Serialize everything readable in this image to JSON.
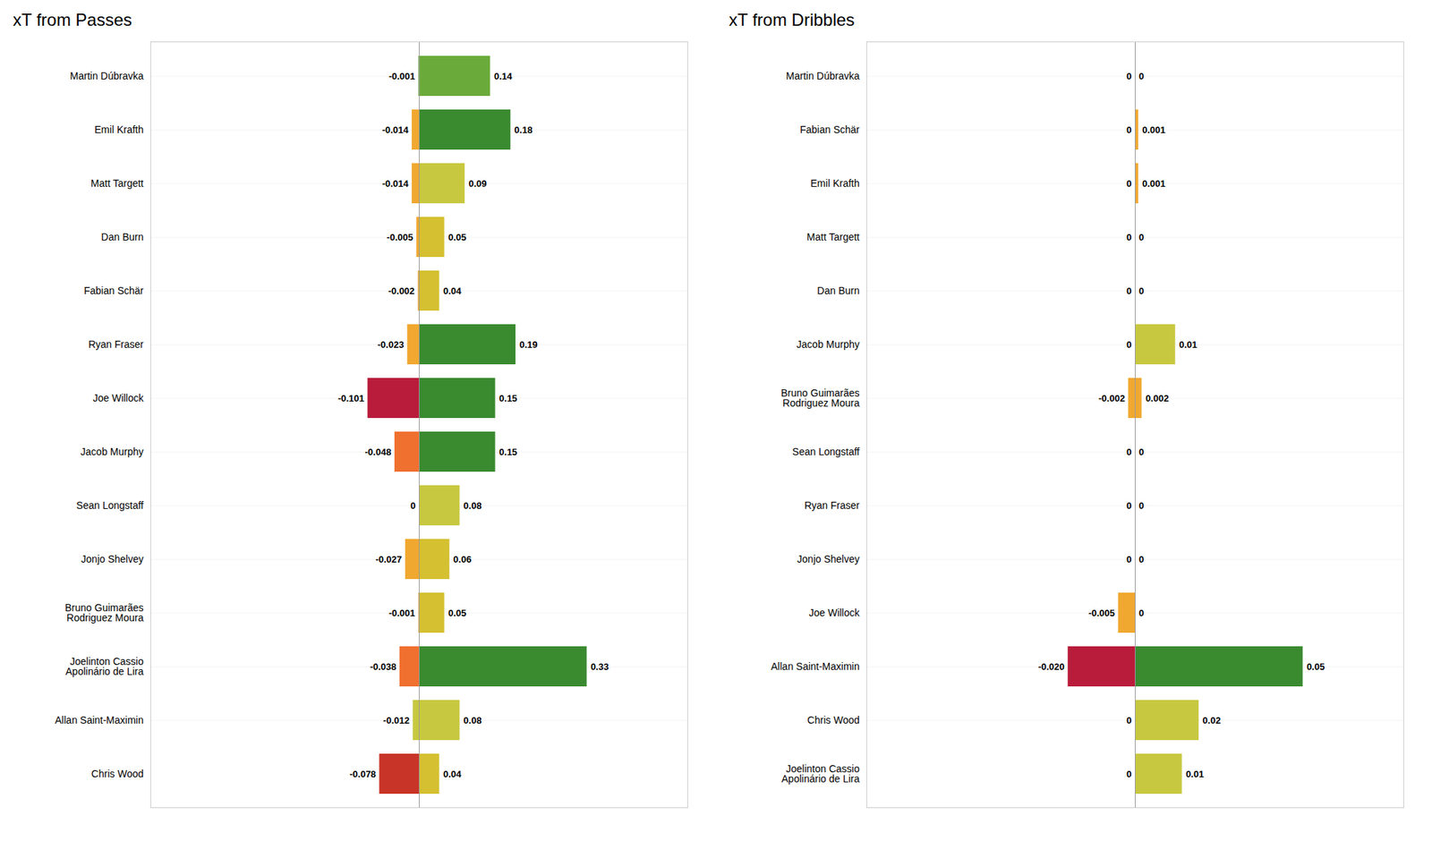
{
  "chart_data": [
    {
      "type": "bar",
      "title": "xT from Passes",
      "orientation": "horizontal",
      "stacked": true,
      "data_labels": true,
      "tick_labels": "y",
      "grid": false,
      "categories": [
        "Martin Dúbravka",
        "Emil Krafth",
        "Matt Targett",
        "Dan Burn",
        "Fabian Schär",
        "Ryan Fraser",
        "Joe Willock",
        "Jacob Murphy",
        "Sean Longstaff",
        "Jonjo Shelvey",
        "Bruno Guimarães\nRodriguez Moura",
        "Joelinton Cassio\nApolinário de Lira",
        "Allan Saint-Maximin",
        "Chris Wood"
      ],
      "xlim": [
        -0.528,
        0.528
      ],
      "series": [
        {
          "values": [
            -0.001,
            -0.014,
            -0.014,
            -0.005,
            -0.002,
            -0.023,
            -0.101,
            -0.048,
            0,
            -0.027,
            -0.001,
            -0.038,
            -0.012,
            -0.078
          ],
          "value_labels": [
            "-0.001",
            "-0.014",
            "-0.014",
            "-0.005",
            "-0.002",
            "-0.023",
            "-0.101",
            "-0.048",
            "0",
            "-0.027",
            "-0.001",
            "-0.038",
            "-0.012",
            "-0.078"
          ],
          "colors": [
            "#6aaa3a",
            "#f0a830",
            "#f0a830",
            "#f0a830",
            "#f0a830",
            "#f0a830",
            "#b91c3a",
            "#f07030",
            "#f0a830",
            "#f0a830",
            "#f0a830",
            "#f07030",
            "#c8c840",
            "#c83428"
          ]
        },
        {
          "values": [
            0.14,
            0.18,
            0.09,
            0.05,
            0.04,
            0.19,
            0.15,
            0.15,
            0.08,
            0.06,
            0.05,
            0.33,
            0.08,
            0.04
          ],
          "value_labels": [
            "0.14",
            "0.18",
            "0.09",
            "0.05",
            "0.04",
            "0.19",
            "0.15",
            "0.15",
            "0.08",
            "0.06",
            "0.05",
            "0.33",
            "0.08",
            "0.04"
          ],
          "colors": [
            "#6aaa3a",
            "#3a8a30",
            "#c8c840",
            "#d4c030",
            "#d4c030",
            "#3a8a30",
            "#3a8a30",
            "#3a8a30",
            "#c8c840",
            "#d4c030",
            "#d4c030",
            "#3a8a30",
            "#c8c840",
            "#d4c030"
          ]
        }
      ]
    },
    {
      "type": "bar",
      "title": "xT from Dribbles",
      "orientation": "horizontal",
      "stacked": true,
      "data_labels": true,
      "tick_labels": "y",
      "grid": false,
      "categories": [
        "Martin Dúbravka",
        "Fabian Schär",
        "Emil Krafth",
        "Matt Targett",
        "Dan Burn",
        "Jacob Murphy",
        "Bruno Guimarães\nRodriguez Moura",
        "Sean Longstaff",
        "Ryan Fraser",
        "Jonjo Shelvey",
        "Joe Willock",
        "Allan Saint-Maximin",
        "Chris Wood",
        "Joelinton Cassio\nApolinário de Lira"
      ],
      "xlim": [
        -0.08,
        0.08
      ],
      "series": [
        {
          "values": [
            0,
            0,
            0,
            0,
            0,
            0,
            -0.002,
            0,
            0,
            0,
            -0.005,
            -0.02,
            0,
            0
          ],
          "value_labels": [
            "0",
            "0",
            "0",
            "0",
            "0",
            "0",
            "-0.002",
            "0",
            "0",
            "0",
            "-0.005",
            "-0.020",
            "0",
            "0"
          ],
          "colors": [
            "#6aaa3a",
            "#f0a830",
            "#f0a830",
            "#f0a830",
            "#f0a830",
            "#3a8a30",
            "#f0a830",
            "#f0a830",
            "#f0a830",
            "#f0a830",
            "#f0a830",
            "#b91c3a",
            "#3a8a30",
            "#3a8a30"
          ]
        },
        {
          "values": [
            0,
            0.001,
            0.001,
            0,
            0,
            0.012,
            0.002,
            0,
            0,
            0,
            0,
            0.05,
            0.019,
            0.014
          ],
          "value_labels": [
            "0",
            "0.001",
            "0.001",
            "0",
            "0",
            "0.01",
            "0.002",
            "0",
            "0",
            "0",
            "0",
            "0.05",
            "0.02",
            "0.01"
          ],
          "colors": [
            "#6aaa3a",
            "#f0a830",
            "#f0a830",
            "#f0a830",
            "#f0a830",
            "#c8c840",
            "#f0a830",
            "#f0a830",
            "#f0a830",
            "#f0a830",
            "#f0a830",
            "#3a8a30",
            "#c8c840",
            "#c8c840"
          ]
        }
      ]
    }
  ]
}
